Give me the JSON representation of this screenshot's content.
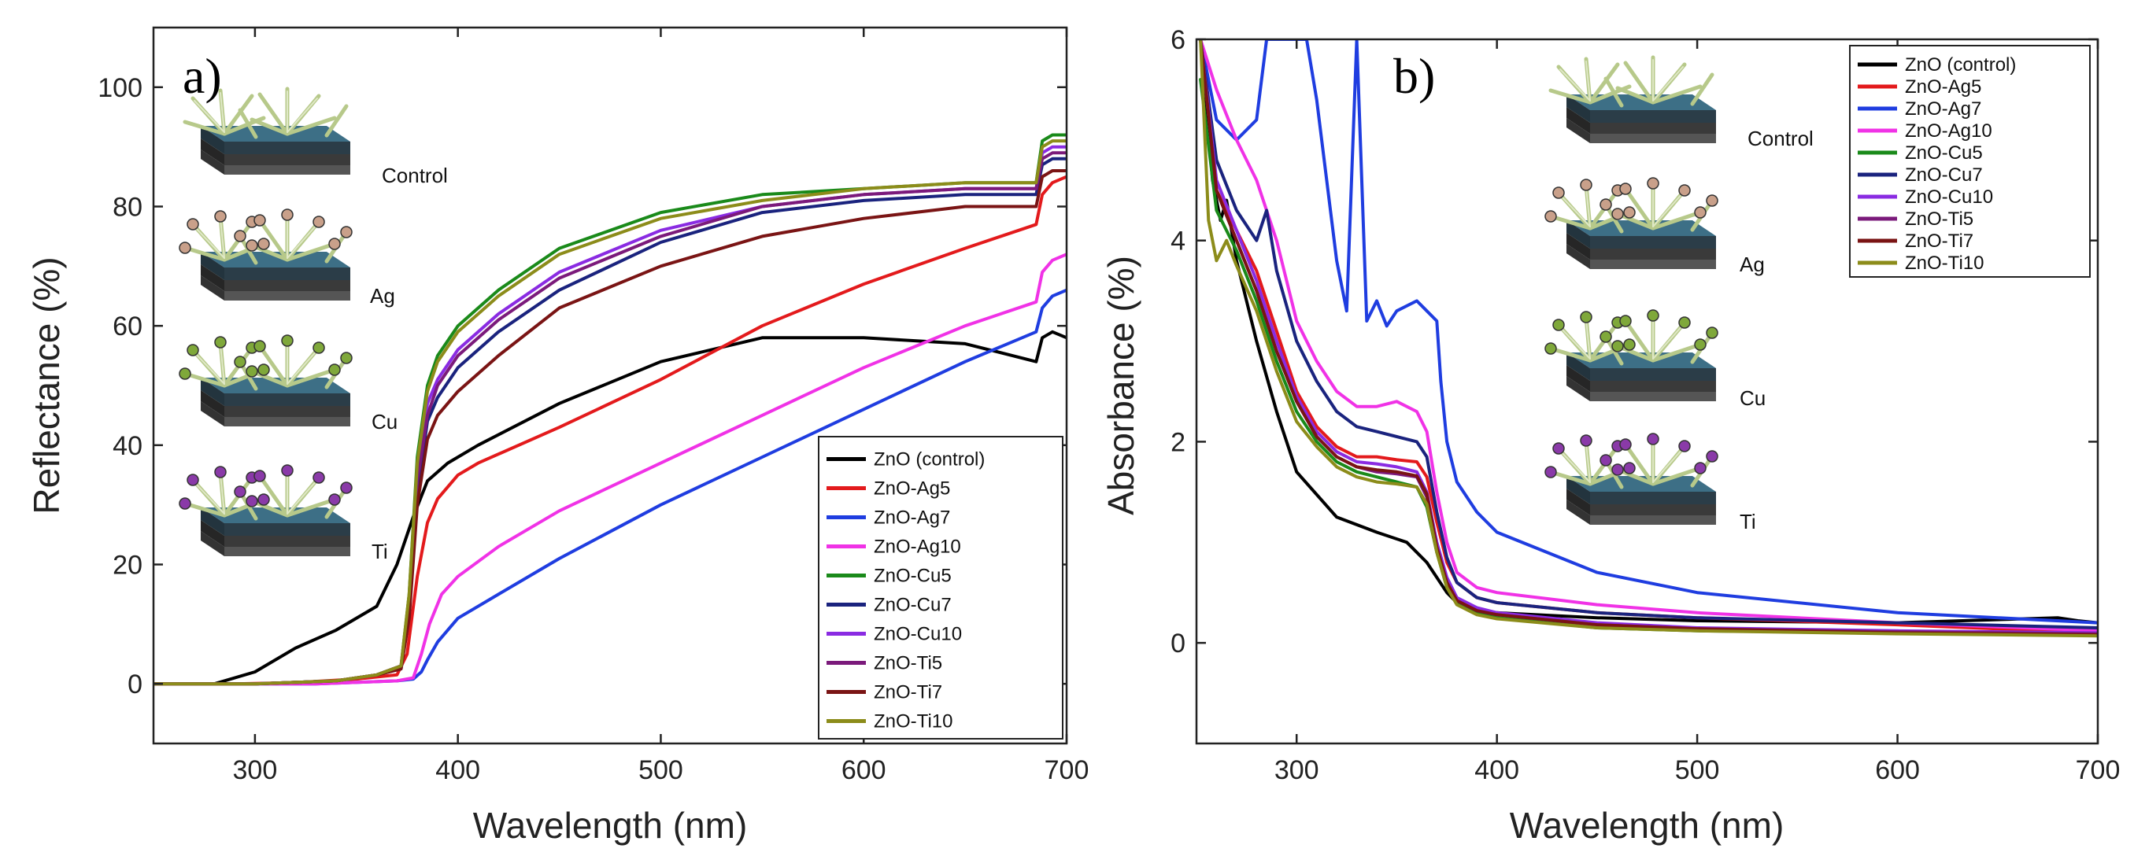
{
  "figure": {
    "panels": [
      {
        "label": "a)",
        "insets": [
          "Control",
          "Ag",
          "Cu",
          "Ti"
        ]
      },
      {
        "label": "b)",
        "insets": [
          "Control",
          "Ag",
          "Cu",
          "Ti"
        ]
      }
    ]
  },
  "chart_data": [
    {
      "type": "line",
      "panel": "a)",
      "title": "",
      "xlabel": "Wavelength (nm)",
      "ylabel": "Reflectance (%)",
      "xlim": [
        250,
        700
      ],
      "ylim": [
        -10,
        110
      ],
      "xticks": [
        300,
        400,
        500,
        600,
        700
      ],
      "yticks": [
        0,
        20,
        40,
        60,
        80,
        100
      ],
      "legend_position": "bottom-right",
      "series": [
        {
          "name": "ZnO (control)",
          "color": "#000000",
          "x": [
            250,
            280,
            300,
            320,
            340,
            360,
            370,
            378,
            385,
            395,
            410,
            450,
            500,
            550,
            600,
            650,
            685,
            688,
            693,
            700
          ],
          "y": [
            0,
            0,
            2,
            6,
            9,
            13,
            20,
            28,
            34,
            37,
            40,
            47,
            54,
            58,
            58,
            57,
            54,
            58,
            59,
            58
          ]
        },
        {
          "name": "ZnO-Ag5",
          "color": "#e31a1c",
          "x": [
            250,
            290,
            320,
            350,
            370,
            375,
            380,
            385,
            390,
            400,
            410,
            450,
            500,
            550,
            600,
            650,
            685,
            688,
            693,
            700
          ],
          "y": [
            0,
            0,
            0.2,
            0.8,
            1.5,
            5,
            18,
            27,
            31,
            35,
            37,
            43,
            51,
            60,
            67,
            73,
            77,
            82,
            84,
            85
          ]
        },
        {
          "name": "ZnO-Ag7",
          "color": "#1f3de0",
          "x": [
            250,
            330,
            370,
            378,
            382,
            385,
            390,
            400,
            420,
            450,
            500,
            550,
            600,
            650,
            685,
            688,
            693,
            700
          ],
          "y": [
            0,
            0,
            0.5,
            0.8,
            2,
            4,
            7,
            11,
            15,
            21,
            30,
            38,
            46,
            54,
            59,
            63,
            65,
            66
          ]
        },
        {
          "name": "ZnO-Ag10",
          "color": "#f032e6",
          "x": [
            250,
            330,
            370,
            378,
            382,
            386,
            392,
            400,
            420,
            450,
            500,
            550,
            600,
            650,
            685,
            688,
            693,
            700
          ],
          "y": [
            0,
            0,
            0.5,
            1,
            5,
            10,
            15,
            18,
            23,
            29,
            37,
            45,
            53,
            60,
            64,
            69,
            71,
            72
          ]
        },
        {
          "name": "ZnO-Cu5",
          "color": "#1a8a1a",
          "x": [
            250,
            300,
            340,
            360,
            372,
            376,
            380,
            385,
            390,
            400,
            420,
            450,
            500,
            550,
            600,
            650,
            685,
            688,
            693,
            700
          ],
          "y": [
            0,
            0,
            0.5,
            1.5,
            3,
            15,
            38,
            50,
            55,
            60,
            66,
            73,
            79,
            82,
            83,
            84,
            84,
            91,
            92,
            92
          ]
        },
        {
          "name": "ZnO-Cu7",
          "color": "#1a237e",
          "x": [
            250,
            300,
            340,
            360,
            372,
            376,
            380,
            385,
            390,
            400,
            420,
            450,
            500,
            550,
            600,
            650,
            685,
            688,
            693,
            700
          ],
          "y": [
            0,
            0,
            0.5,
            1.5,
            2.5,
            12,
            32,
            44,
            48,
            53,
            59,
            66,
            74,
            79,
            81,
            82,
            82,
            87,
            88,
            88
          ]
        },
        {
          "name": "ZnO-Cu10",
          "color": "#8a2be2",
          "x": [
            250,
            300,
            340,
            360,
            372,
            376,
            380,
            385,
            390,
            400,
            420,
            450,
            500,
            550,
            600,
            650,
            685,
            688,
            693,
            700
          ],
          "y": [
            0,
            0,
            0.5,
            1.5,
            3,
            14,
            35,
            47,
            51,
            56,
            62,
            69,
            76,
            80,
            82,
            83,
            83,
            89,
            90,
            90
          ]
        },
        {
          "name": "ZnO-Ti5",
          "color": "#7b1a7b",
          "x": [
            250,
            300,
            340,
            360,
            372,
            376,
            380,
            385,
            390,
            400,
            420,
            450,
            500,
            550,
            600,
            650,
            685,
            688,
            693,
            700
          ],
          "y": [
            0,
            0,
            0.5,
            1.5,
            3,
            13,
            34,
            45,
            50,
            55,
            61,
            68,
            75,
            80,
            82,
            83,
            83,
            88,
            89,
            89
          ]
        },
        {
          "name": "ZnO-Ti7",
          "color": "#7a1414",
          "x": [
            250,
            300,
            340,
            360,
            372,
            376,
            380,
            385,
            390,
            400,
            420,
            450,
            500,
            550,
            600,
            650,
            685,
            688,
            693,
            700
          ],
          "y": [
            0,
            0,
            0.5,
            1.5,
            2.5,
            11,
            30,
            41,
            45,
            49,
            55,
            63,
            70,
            75,
            78,
            80,
            80,
            85,
            86,
            86
          ]
        },
        {
          "name": "ZnO-Ti10",
          "color": "#8c8c1a",
          "x": [
            250,
            300,
            340,
            360,
            372,
            376,
            380,
            385,
            390,
            400,
            420,
            450,
            500,
            550,
            600,
            650,
            685,
            688,
            693,
            700
          ],
          "y": [
            0,
            0,
            0.5,
            1.5,
            3,
            15,
            37,
            49,
            54,
            59,
            65,
            72,
            78,
            81,
            83,
            84,
            84,
            90,
            91,
            91
          ]
        }
      ]
    },
    {
      "type": "line",
      "panel": "b)",
      "title": "",
      "xlabel": "Wavelength (nm)",
      "ylabel": "Absorbance (%)",
      "xlim": [
        250,
        700
      ],
      "ylim": [
        -1,
        6
      ],
      "xticks": [
        300,
        400,
        500,
        600,
        700
      ],
      "yticks": [
        0,
        2,
        4,
        6
      ],
      "legend_position": "top-right",
      "series": [
        {
          "name": "ZnO (control)",
          "color": "#000000",
          "x": [
            252,
            258,
            262,
            265,
            270,
            280,
            290,
            300,
            320,
            340,
            355,
            365,
            375,
            380,
            390,
            400,
            450,
            500,
            600,
            680,
            690,
            700
          ],
          "y": [
            6,
            4.6,
            4.2,
            4.4,
            3.8,
            3.0,
            2.3,
            1.7,
            1.25,
            1.1,
            1.0,
            0.8,
            0.5,
            0.4,
            0.33,
            0.3,
            0.25,
            0.22,
            0.2,
            0.25,
            0.22,
            0.2
          ]
        },
        {
          "name": "ZnO-Ag5",
          "color": "#e31a1c",
          "x": [
            252,
            260,
            270,
            280,
            290,
            300,
            310,
            320,
            330,
            340,
            350,
            360,
            365,
            370,
            375,
            380,
            390,
            400,
            450,
            500,
            600,
            700
          ],
          "y": [
            6,
            4.5,
            4.1,
            3.7,
            3.1,
            2.5,
            2.15,
            1.95,
            1.85,
            1.85,
            1.82,
            1.8,
            1.65,
            1.2,
            0.8,
            0.6,
            0.45,
            0.4,
            0.3,
            0.25,
            0.18,
            0.1
          ]
        },
        {
          "name": "ZnO-Ag7",
          "color": "#1f3de0",
          "x": [
            252,
            260,
            270,
            280,
            285,
            290,
            295,
            300,
            305,
            310,
            315,
            320,
            325,
            330,
            335,
            340,
            345,
            350,
            360,
            365,
            370,
            372,
            375,
            380,
            390,
            400,
            450,
            500,
            600,
            700
          ],
          "y": [
            6,
            5.2,
            5.0,
            5.2,
            6,
            6,
            6,
            6,
            6,
            5.4,
            4.6,
            3.8,
            3.3,
            6,
            3.2,
            3.4,
            3.15,
            3.3,
            3.4,
            3.3,
            3.2,
            2.6,
            2.0,
            1.6,
            1.3,
            1.1,
            0.7,
            0.5,
            0.3,
            0.2
          ]
        },
        {
          "name": "ZnO-Ag10",
          "color": "#f032e6",
          "x": [
            252,
            260,
            270,
            280,
            290,
            300,
            310,
            320,
            330,
            340,
            350,
            360,
            365,
            370,
            375,
            380,
            390,
            400,
            450,
            500,
            600,
            700
          ],
          "y": [
            6,
            5.5,
            5.0,
            4.6,
            4.0,
            3.2,
            2.8,
            2.5,
            2.35,
            2.35,
            2.4,
            2.3,
            2.1,
            1.5,
            1.0,
            0.7,
            0.55,
            0.5,
            0.38,
            0.3,
            0.2,
            0.12
          ]
        },
        {
          "name": "ZnO-Cu5",
          "color": "#1a8a1a",
          "x": [
            252,
            260,
            270,
            280,
            290,
            300,
            310,
            320,
            330,
            340,
            350,
            360,
            365,
            370,
            375,
            380,
            390,
            400,
            450,
            500,
            600,
            700
          ],
          "y": [
            5.6,
            4.3,
            3.9,
            3.4,
            2.8,
            2.3,
            2.0,
            1.8,
            1.7,
            1.65,
            1.6,
            1.55,
            1.35,
            0.9,
            0.55,
            0.4,
            0.3,
            0.25,
            0.15,
            0.12,
            0.1,
            0.08
          ]
        },
        {
          "name": "ZnO-Cu7",
          "color": "#1a237e",
          "x": [
            252,
            260,
            270,
            280,
            285,
            290,
            300,
            310,
            320,
            330,
            340,
            350,
            360,
            365,
            370,
            375,
            380,
            390,
            400,
            450,
            500,
            600,
            700
          ],
          "y": [
            6,
            4.8,
            4.3,
            4.0,
            4.3,
            3.7,
            3.0,
            2.6,
            2.3,
            2.15,
            2.1,
            2.05,
            2.0,
            1.85,
            1.3,
            0.85,
            0.6,
            0.45,
            0.4,
            0.3,
            0.25,
            0.2,
            0.15
          ]
        },
        {
          "name": "ZnO-Cu10",
          "color": "#8a2be2",
          "x": [
            252,
            260,
            270,
            280,
            290,
            300,
            310,
            320,
            330,
            340,
            350,
            360,
            365,
            370,
            375,
            380,
            390,
            400,
            450,
            500,
            600,
            700
          ],
          "y": [
            6,
            4.6,
            4.1,
            3.6,
            3.0,
            2.45,
            2.1,
            1.9,
            1.8,
            1.78,
            1.75,
            1.7,
            1.5,
            1.0,
            0.65,
            0.45,
            0.35,
            0.3,
            0.2,
            0.15,
            0.12,
            0.1
          ]
        },
        {
          "name": "ZnO-Ti5",
          "color": "#7b1a7b",
          "x": [
            252,
            260,
            270,
            280,
            290,
            300,
            310,
            320,
            330,
            340,
            350,
            360,
            365,
            370,
            375,
            380,
            390,
            400,
            450,
            500,
            600,
            700
          ],
          "y": [
            6,
            4.5,
            4.0,
            3.5,
            2.9,
            2.4,
            2.05,
            1.85,
            1.75,
            1.7,
            1.68,
            1.65,
            1.45,
            0.95,
            0.6,
            0.42,
            0.32,
            0.28,
            0.18,
            0.14,
            0.11,
            0.09
          ]
        },
        {
          "name": "ZnO-Ti7",
          "color": "#7a1414",
          "x": [
            252,
            260,
            270,
            280,
            290,
            300,
            310,
            320,
            330,
            340,
            350,
            360,
            365,
            370,
            375,
            380,
            390,
            400,
            450,
            500,
            600,
            700
          ],
          "y": [
            6,
            4.5,
            4.0,
            3.5,
            2.9,
            2.4,
            2.05,
            1.85,
            1.75,
            1.72,
            1.7,
            1.66,
            1.48,
            0.95,
            0.6,
            0.42,
            0.32,
            0.28,
            0.18,
            0.14,
            0.1,
            0.08
          ]
        },
        {
          "name": "ZnO-Ti10",
          "color": "#8c8c1a",
          "x": [
            252,
            256,
            260,
            265,
            270,
            280,
            290,
            300,
            310,
            320,
            330,
            340,
            350,
            360,
            365,
            370,
            375,
            380,
            390,
            400,
            450,
            500,
            600,
            700
          ],
          "y": [
            6,
            4.2,
            3.8,
            4.0,
            3.75,
            3.3,
            2.7,
            2.2,
            1.95,
            1.75,
            1.65,
            1.6,
            1.58,
            1.55,
            1.38,
            0.9,
            0.55,
            0.38,
            0.28,
            0.24,
            0.15,
            0.12,
            0.09,
            0.07
          ]
        }
      ]
    }
  ]
}
